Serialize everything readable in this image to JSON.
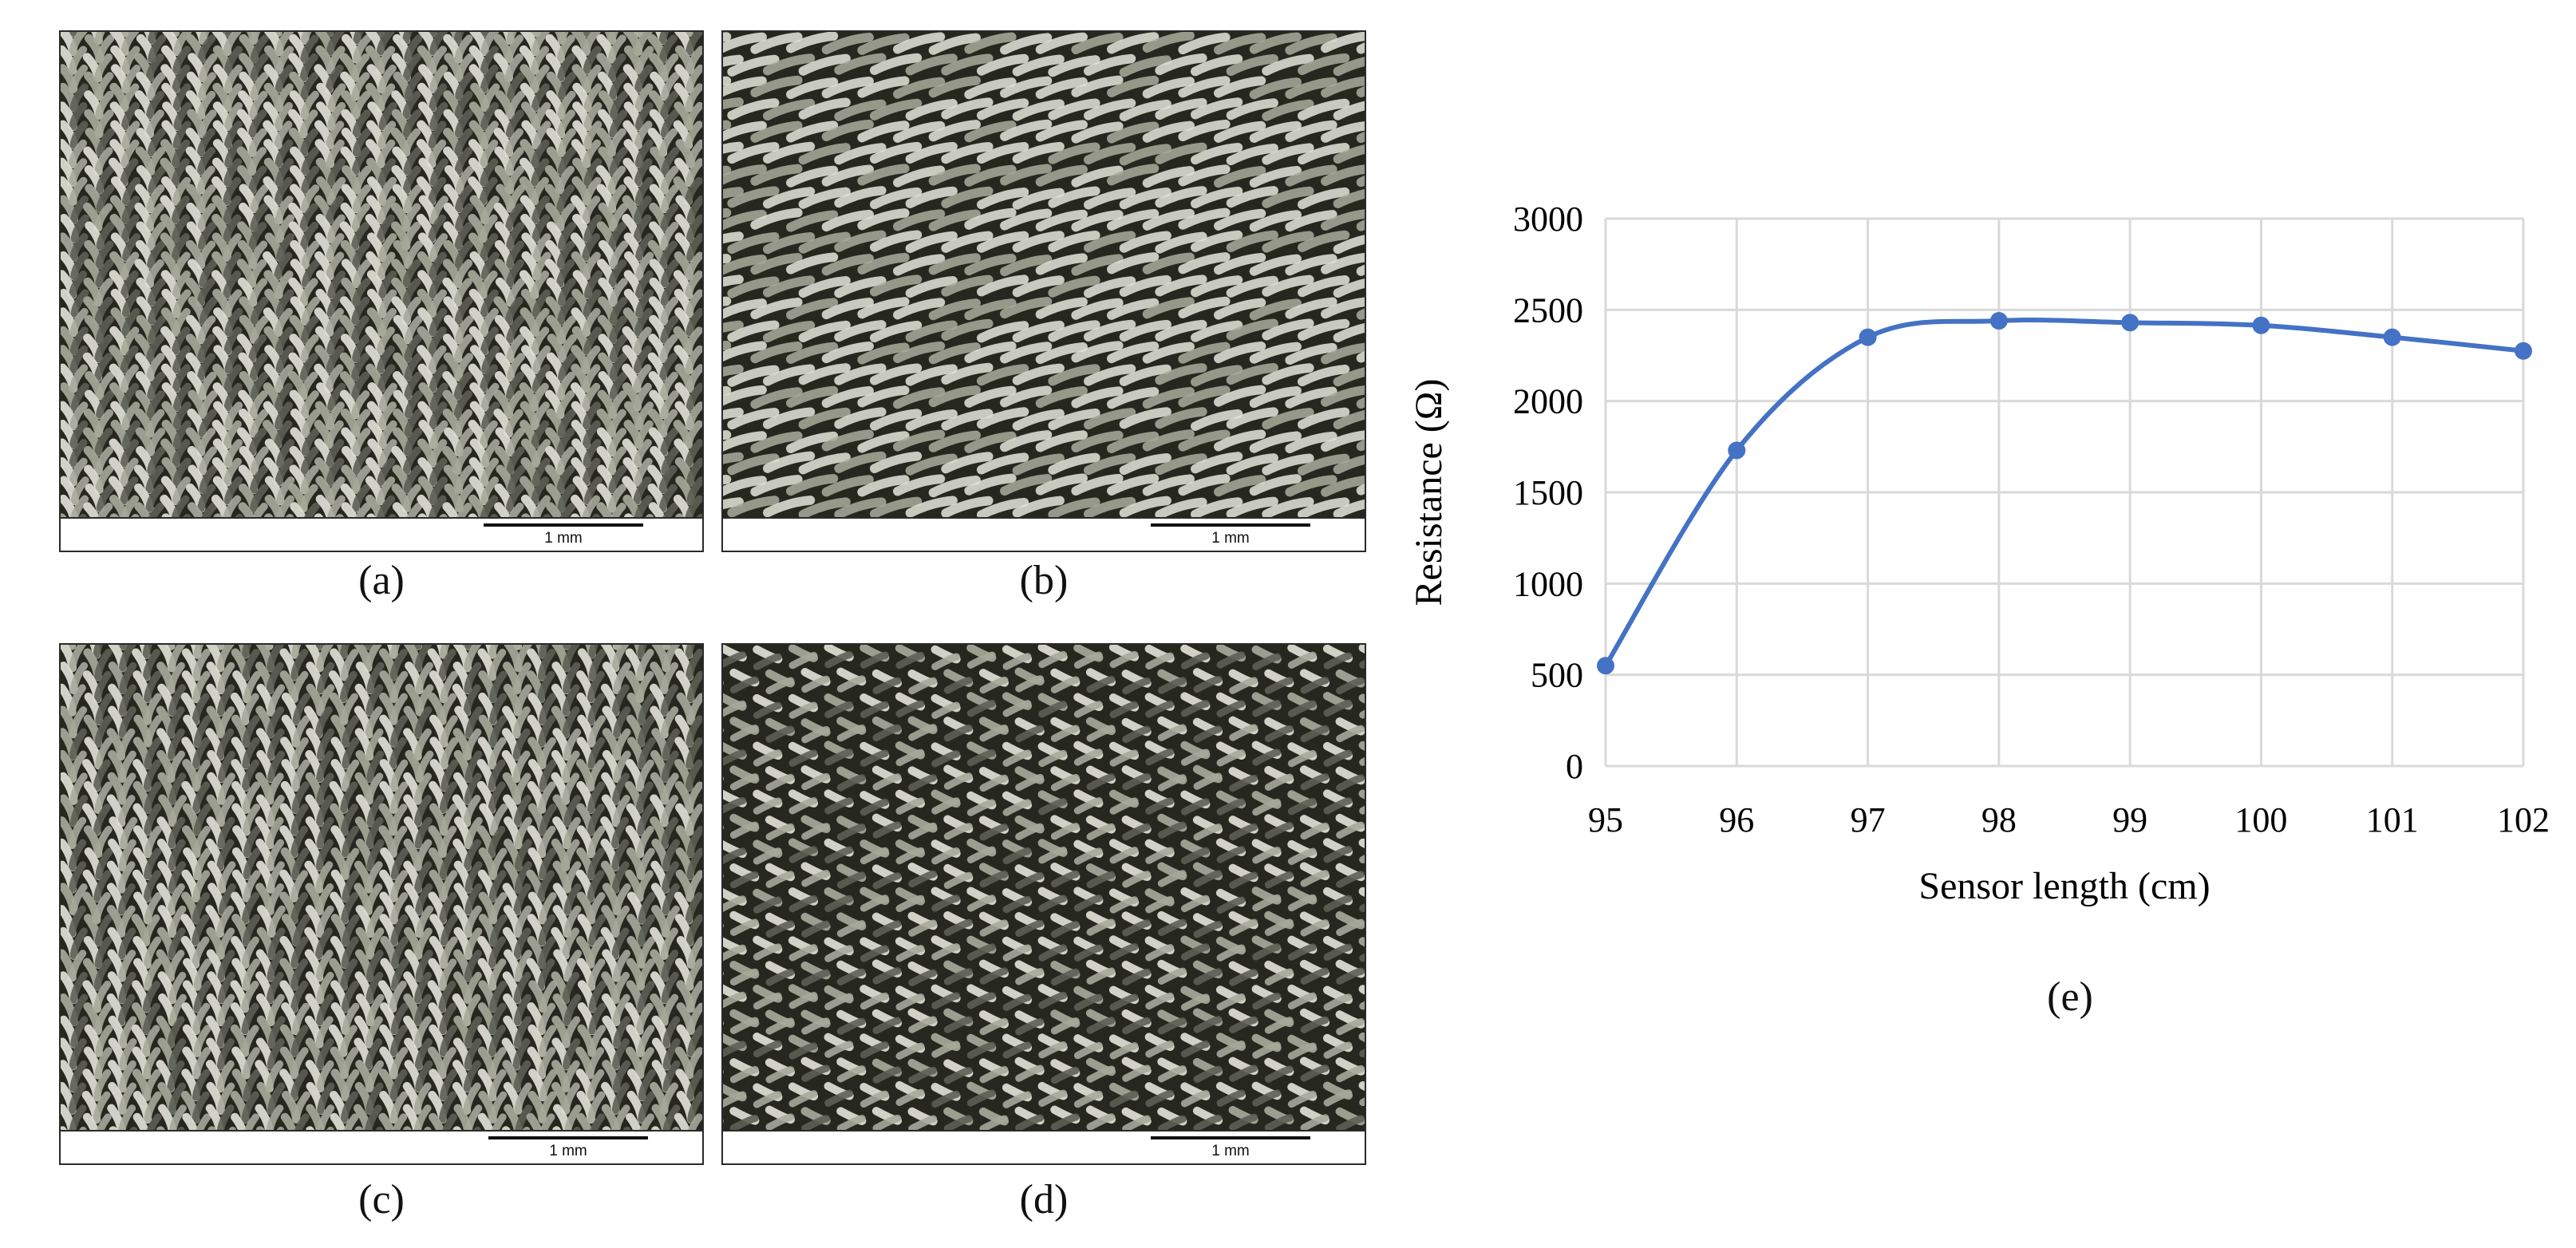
{
  "panels": [
    {
      "id": "a",
      "caption": "(a)",
      "scale_label": "1 mm",
      "pattern": "vertical-rib",
      "tone": "#8d8f82"
    },
    {
      "id": "b",
      "caption": "(b)",
      "scale_label": "1 mm",
      "pattern": "horizontal-twill",
      "tone": "#7d7c6c"
    },
    {
      "id": "c",
      "caption": "(c)",
      "scale_label": "1 mm",
      "pattern": "vertical-chevron",
      "tone": "#848a80"
    },
    {
      "id": "d",
      "caption": "(d)",
      "scale_label": "1 mm",
      "pattern": "horizontal-herringbone",
      "tone": "#7f8179"
    }
  ],
  "chart_caption": "(e)",
  "chart_data": {
    "type": "line",
    "x": [
      95,
      96,
      97,
      98,
      99,
      100,
      101,
      102
    ],
    "values": [
      550,
      1730,
      2350,
      2440,
      2430,
      2415,
      2350,
      2275
    ],
    "xlabel": "Sensor length (cm)",
    "ylabel": "Resistance (Ω)",
    "xlim": [
      95,
      102
    ],
    "ylim": [
      0,
      3000
    ],
    "yticks": [
      "0",
      "500",
      "1000",
      "1500",
      "2000",
      "2500",
      "3000"
    ],
    "xticks": [
      "95",
      "96",
      "97",
      "98",
      "99",
      "100",
      "101",
      "102"
    ],
    "grid": true,
    "smooth": true,
    "markers": true,
    "line_color": "#4472c4",
    "grid_color": "#d9d9d9"
  }
}
